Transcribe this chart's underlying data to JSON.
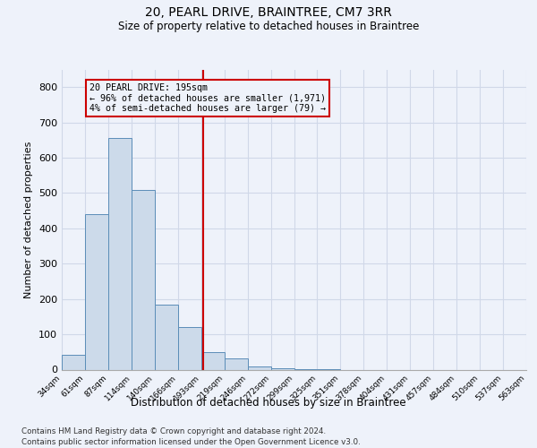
{
  "title1": "20, PEARL DRIVE, BRAINTREE, CM7 3RR",
  "title2": "Size of property relative to detached houses in Braintree",
  "xlabel": "Distribution of detached houses by size in Braintree",
  "ylabel": "Number of detached properties",
  "footnote1": "Contains HM Land Registry data © Crown copyright and database right 2024.",
  "footnote2": "Contains public sector information licensed under the Open Government Licence v3.0.",
  "annotation_line1": "20 PEARL DRIVE: 195sqm",
  "annotation_line2": "← 96% of detached houses are smaller (1,971)",
  "annotation_line3": "4% of semi-detached houses are larger (79) →",
  "property_size": 195,
  "bar_color": "#ccdaea",
  "bar_edge_color": "#5b8db8",
  "grid_color": "#d0d8e8",
  "vline_color": "#cc0000",
  "bin_edges": [
    34,
    61,
    87,
    114,
    140,
    166,
    193,
    219,
    246,
    272,
    299,
    325,
    351,
    378,
    404,
    431,
    457,
    484,
    510,
    537,
    563
  ],
  "bar_heights": [
    42,
    440,
    655,
    510,
    185,
    120,
    50,
    32,
    10,
    5,
    2,
    1,
    0,
    0,
    0,
    0,
    0,
    0,
    0,
    0
  ],
  "ylim": [
    0,
    850
  ],
  "yticks": [
    0,
    100,
    200,
    300,
    400,
    500,
    600,
    700,
    800
  ],
  "background_color": "#eef2fa"
}
